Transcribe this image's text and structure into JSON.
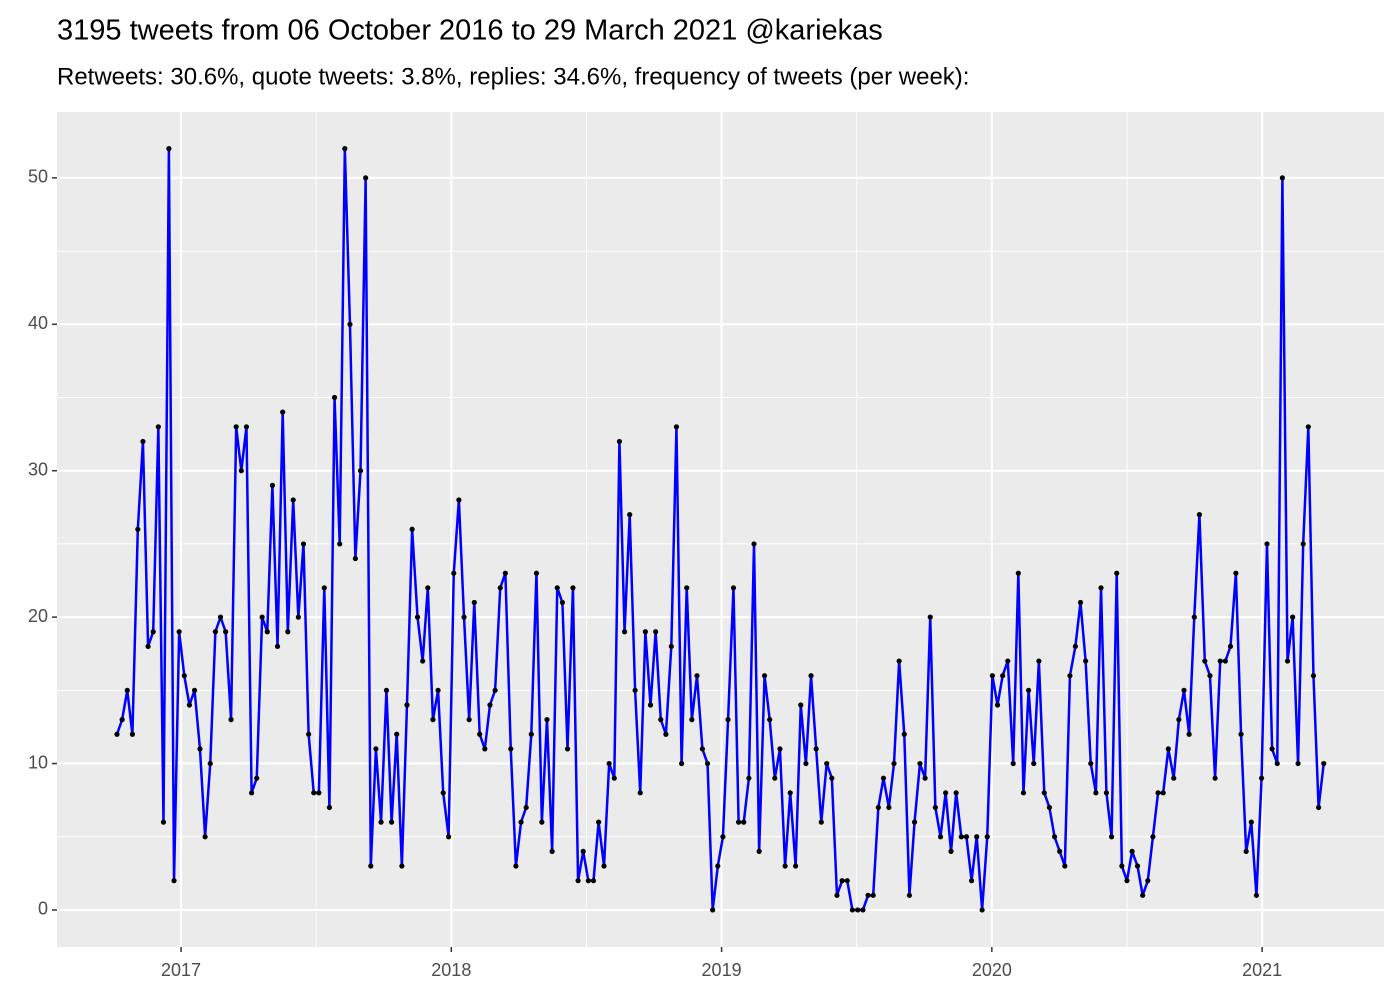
{
  "chart_data": {
    "type": "line",
    "title": "3195 tweets from 06 October 2016 to 29 March 2021 @kariekas",
    "subtitle": "Retweets: 30.6%, quote tweets: 3.8%, replies: 34.6%, frequency of tweets (per week):",
    "color": "#0000ff",
    "point_color": "#000000",
    "grid": true,
    "xlim": [
      2016.541,
      2021.451
    ],
    "xticks": [
      2017,
      2018,
      2019,
      2020,
      2021
    ],
    "ylim": [
      -2.53,
      54.5
    ],
    "yticks": [
      0,
      10,
      20,
      30,
      40,
      50
    ],
    "x": [
      2016.763,
      2016.782,
      2016.801,
      2016.82,
      2016.84,
      2016.859,
      2016.878,
      2016.897,
      2016.916,
      2016.935,
      2016.955,
      2016.974,
      2016.993,
      2017.012,
      2017.031,
      2017.05,
      2017.07,
      2017.089,
      2017.108,
      2017.127,
      2017.146,
      2017.165,
      2017.185,
      2017.204,
      2017.223,
      2017.242,
      2017.261,
      2017.28,
      2017.3,
      2017.319,
      2017.338,
      2017.357,
      2017.376,
      2017.395,
      2017.415,
      2017.434,
      2017.453,
      2017.472,
      2017.491,
      2017.51,
      2017.53,
      2017.549,
      2017.568,
      2017.587,
      2017.606,
      2017.625,
      2017.645,
      2017.664,
      2017.683,
      2017.702,
      2017.721,
      2017.74,
      2017.76,
      2017.779,
      2017.798,
      2017.817,
      2017.836,
      2017.855,
      2017.875,
      2017.894,
      2017.913,
      2017.932,
      2017.951,
      2017.97,
      2017.99,
      2018.009,
      2018.028,
      2018.047,
      2018.066,
      2018.085,
      2018.105,
      2018.124,
      2018.143,
      2018.162,
      2018.181,
      2018.2,
      2018.22,
      2018.239,
      2018.258,
      2018.277,
      2018.296,
      2018.315,
      2018.335,
      2018.354,
      2018.373,
      2018.392,
      2018.411,
      2018.43,
      2018.45,
      2018.469,
      2018.488,
      2018.507,
      2018.526,
      2018.545,
      2018.565,
      2018.584,
      2018.603,
      2018.622,
      2018.641,
      2018.66,
      2018.68,
      2018.699,
      2018.718,
      2018.737,
      2018.756,
      2018.775,
      2018.794,
      2018.814,
      2018.833,
      2018.852,
      2018.871,
      2018.89,
      2018.909,
      2018.929,
      2018.948,
      2018.967,
      2018.986,
      2019.005,
      2019.024,
      2019.044,
      2019.063,
      2019.082,
      2019.101,
      2019.12,
      2019.139,
      2019.159,
      2019.178,
      2019.197,
      2019.216,
      2019.235,
      2019.254,
      2019.274,
      2019.293,
      2019.312,
      2019.331,
      2019.35,
      2019.369,
      2019.389,
      2019.408,
      2019.427,
      2019.446,
      2019.465,
      2019.484,
      2019.504,
      2019.523,
      2019.542,
      2019.561,
      2019.58,
      2019.599,
      2019.619,
      2019.638,
      2019.657,
      2019.676,
      2019.695,
      2019.714,
      2019.734,
      2019.753,
      2019.772,
      2019.791,
      2019.81,
      2019.829,
      2019.849,
      2019.868,
      2019.887,
      2019.906,
      2019.925,
      2019.944,
      2019.964,
      2019.983,
      2020.002,
      2020.021,
      2020.04,
      2020.059,
      2020.079,
      2020.098,
      2020.117,
      2020.136,
      2020.155,
      2020.174,
      2020.194,
      2020.213,
      2020.232,
      2020.251,
      2020.27,
      2020.289,
      2020.309,
      2020.328,
      2020.347,
      2020.366,
      2020.385,
      2020.404,
      2020.424,
      2020.443,
      2020.462,
      2020.481,
      2020.5,
      2020.519,
      2020.539,
      2020.558,
      2020.577,
      2020.596,
      2020.615,
      2020.634,
      2020.653,
      2020.673,
      2020.692,
      2020.711,
      2020.73,
      2020.749,
      2020.768,
      2020.788,
      2020.807,
      2020.826,
      2020.845,
      2020.864,
      2020.883,
      2020.903,
      2020.922,
      2020.941,
      2020.96,
      2020.979,
      2020.998,
      2021.018,
      2021.037,
      2021.056,
      2021.075,
      2021.094,
      2021.113,
      2021.133,
      2021.152,
      2021.171,
      2021.19,
      2021.209,
      2021.228
    ],
    "values": [
      12,
      13,
      15,
      12,
      26,
      32,
      18,
      19,
      33,
      6,
      52,
      2,
      19,
      16,
      14,
      15,
      11,
      5,
      10,
      19,
      20,
      19,
      13,
      33,
      30,
      33,
      8,
      9,
      20,
      19,
      29,
      18,
      34,
      19,
      28,
      20,
      25,
      12,
      8,
      8,
      22,
      7,
      35,
      25,
      52,
      40,
      24,
      30,
      50,
      3,
      11,
      6,
      15,
      6,
      12,
      3,
      14,
      26,
      20,
      17,
      22,
      13,
      15,
      8,
      5,
      23,
      28,
      20,
      13,
      21,
      12,
      11,
      14,
      15,
      22,
      23,
      11,
      3,
      6,
      7,
      12,
      23,
      6,
      13,
      4,
      22,
      21,
      11,
      22,
      2,
      4,
      2,
      2,
      6,
      3,
      10,
      9,
      32,
      19,
      27,
      15,
      8,
      19,
      14,
      19,
      13,
      12,
      18,
      33,
      10,
      22,
      13,
      16,
      11,
      10,
      0,
      3,
      5,
      13,
      22,
      6,
      6,
      9,
      25,
      4,
      16,
      13,
      9,
      11,
      3,
      8,
      3,
      14,
      10,
      16,
      11,
      6,
      10,
      9,
      1,
      2,
      2,
      0,
      0,
      0,
      1,
      1,
      7,
      9,
      7,
      10,
      17,
      12,
      1,
      6,
      10,
      9,
      20,
      7,
      5,
      8,
      4,
      8,
      5,
      5,
      2,
      5,
      0,
      5,
      16,
      14,
      16,
      17,
      10,
      23,
      8,
      15,
      10,
      17,
      8,
      7,
      5,
      4,
      3,
      16,
      18,
      21,
      17,
      10,
      8,
      22,
      8,
      5,
      23,
      3,
      2,
      4,
      3,
      1,
      2,
      5,
      8,
      8,
      11,
      9,
      13,
      15,
      12,
      20,
      27,
      17,
      16,
      9,
      17,
      17,
      18,
      23,
      12,
      4,
      6,
      1,
      9,
      25,
      11,
      10,
      50,
      17,
      20,
      10,
      25,
      33,
      16,
      7,
      10
    ]
  }
}
